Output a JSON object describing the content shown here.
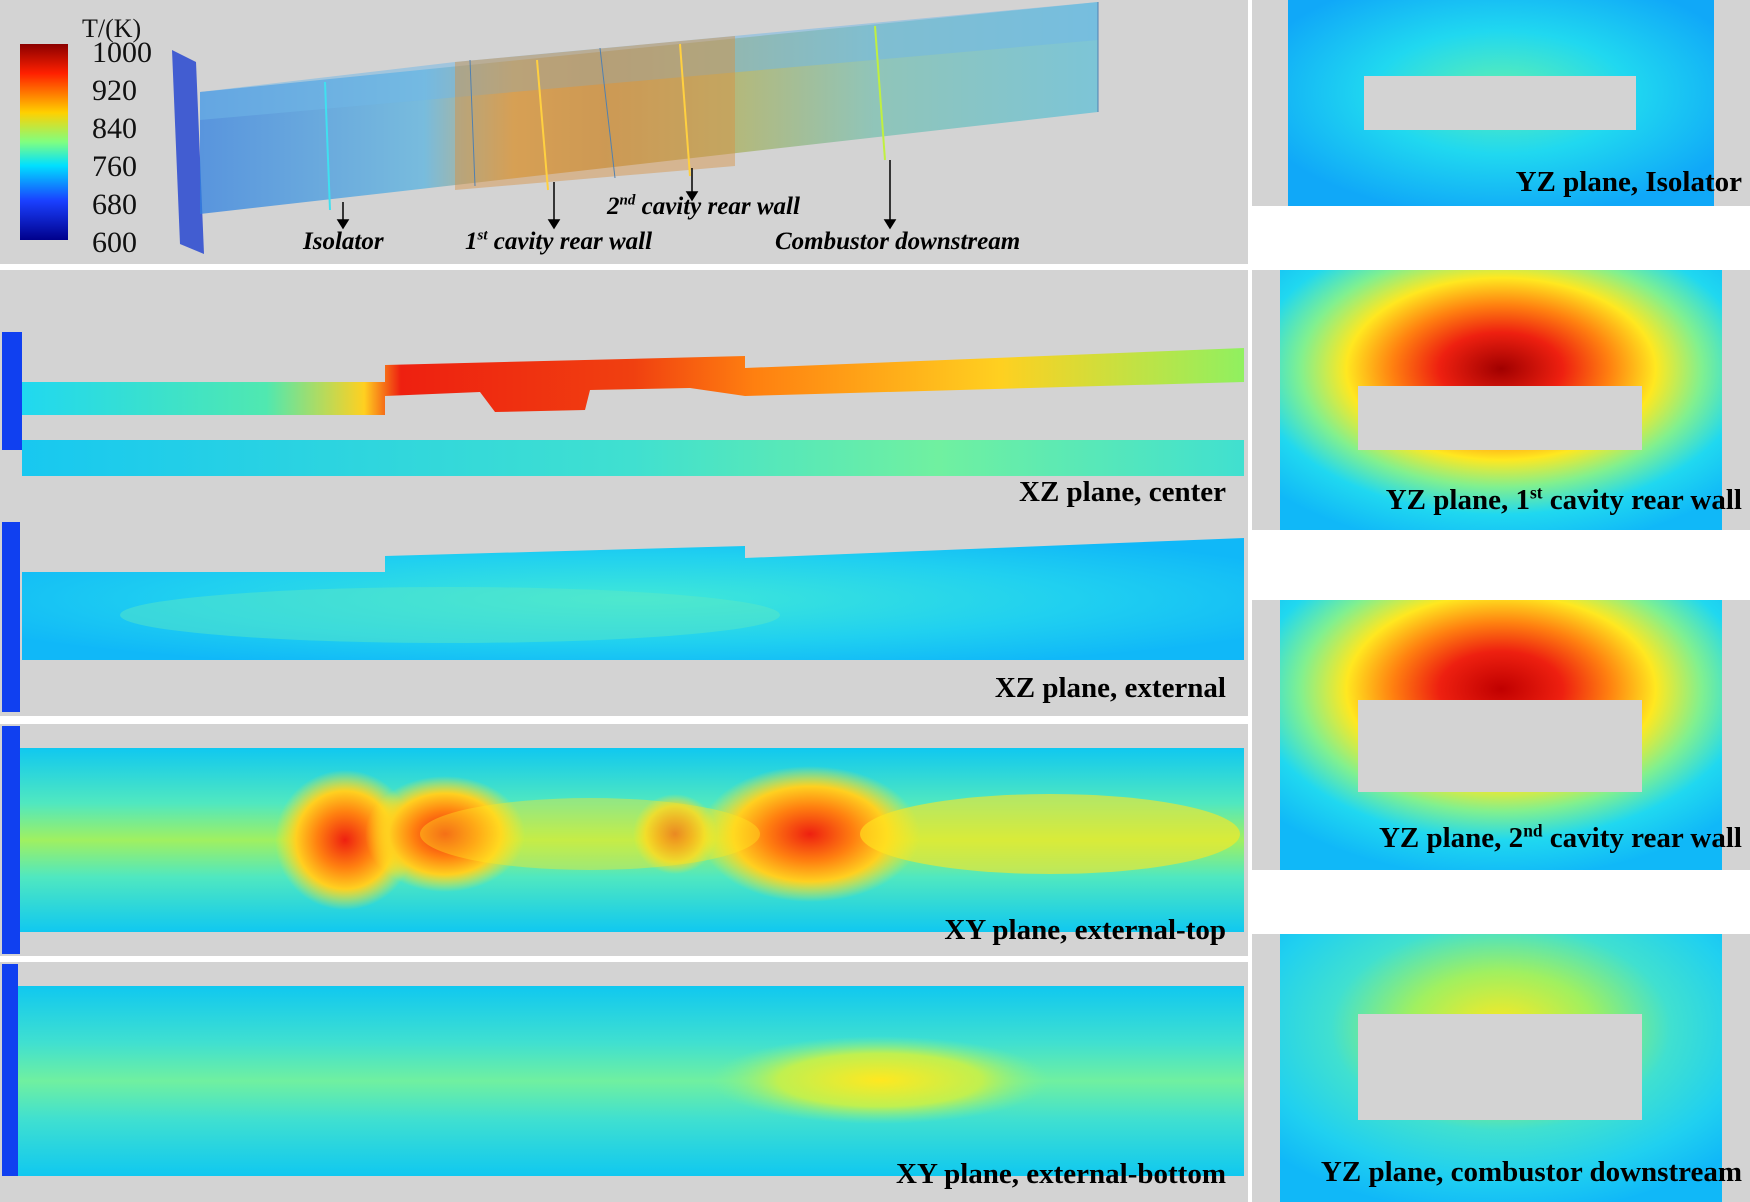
{
  "colorbar": {
    "title": "T/(K)",
    "ticks": [
      "1000",
      "920",
      "840",
      "760",
      "680",
      "600"
    ],
    "colors": [
      "#8b0000",
      "#ff2000",
      "#ffd000",
      "#80ff80",
      "#00e0ff",
      "#1a40ff",
      "#00008b"
    ]
  },
  "model3d": {
    "annotations": {
      "isolator": "Isolator",
      "cavity1": {
        "sup": "st",
        "pre": "1",
        "text": "cavity rear wall"
      },
      "cavity2": {
        "sup": "nd",
        "pre": "2",
        "text": "cavity rear wall"
      },
      "downstream": "Combustor downstream"
    }
  },
  "planes": {
    "xz_center": "XZ plane, center",
    "xz_external": "XZ plane, external",
    "xy_external_top": "XY plane, external-top",
    "xy_external_bottom": "XY plane, external-bottom"
  },
  "yz_planes": {
    "isolator": "YZ plane, Isolator",
    "cavity1": {
      "pre": "YZ plane, 1",
      "sup": "st",
      "post": " cavity rear wall"
    },
    "cavity2": {
      "pre": "YZ plane, 2",
      "sup": "nd",
      "post": " cavity rear wall"
    },
    "downstream": "YZ plane, combustor downstream"
  },
  "palette": {
    "panel_bg": "#d3d3d3",
    "cyan": "#1fd9ee",
    "blue": "#1060ff",
    "green": "#7cf090",
    "yellow": "#ffe820",
    "orange": "#ff8c10",
    "red": "#ee2010",
    "darkred": "#a00000"
  }
}
